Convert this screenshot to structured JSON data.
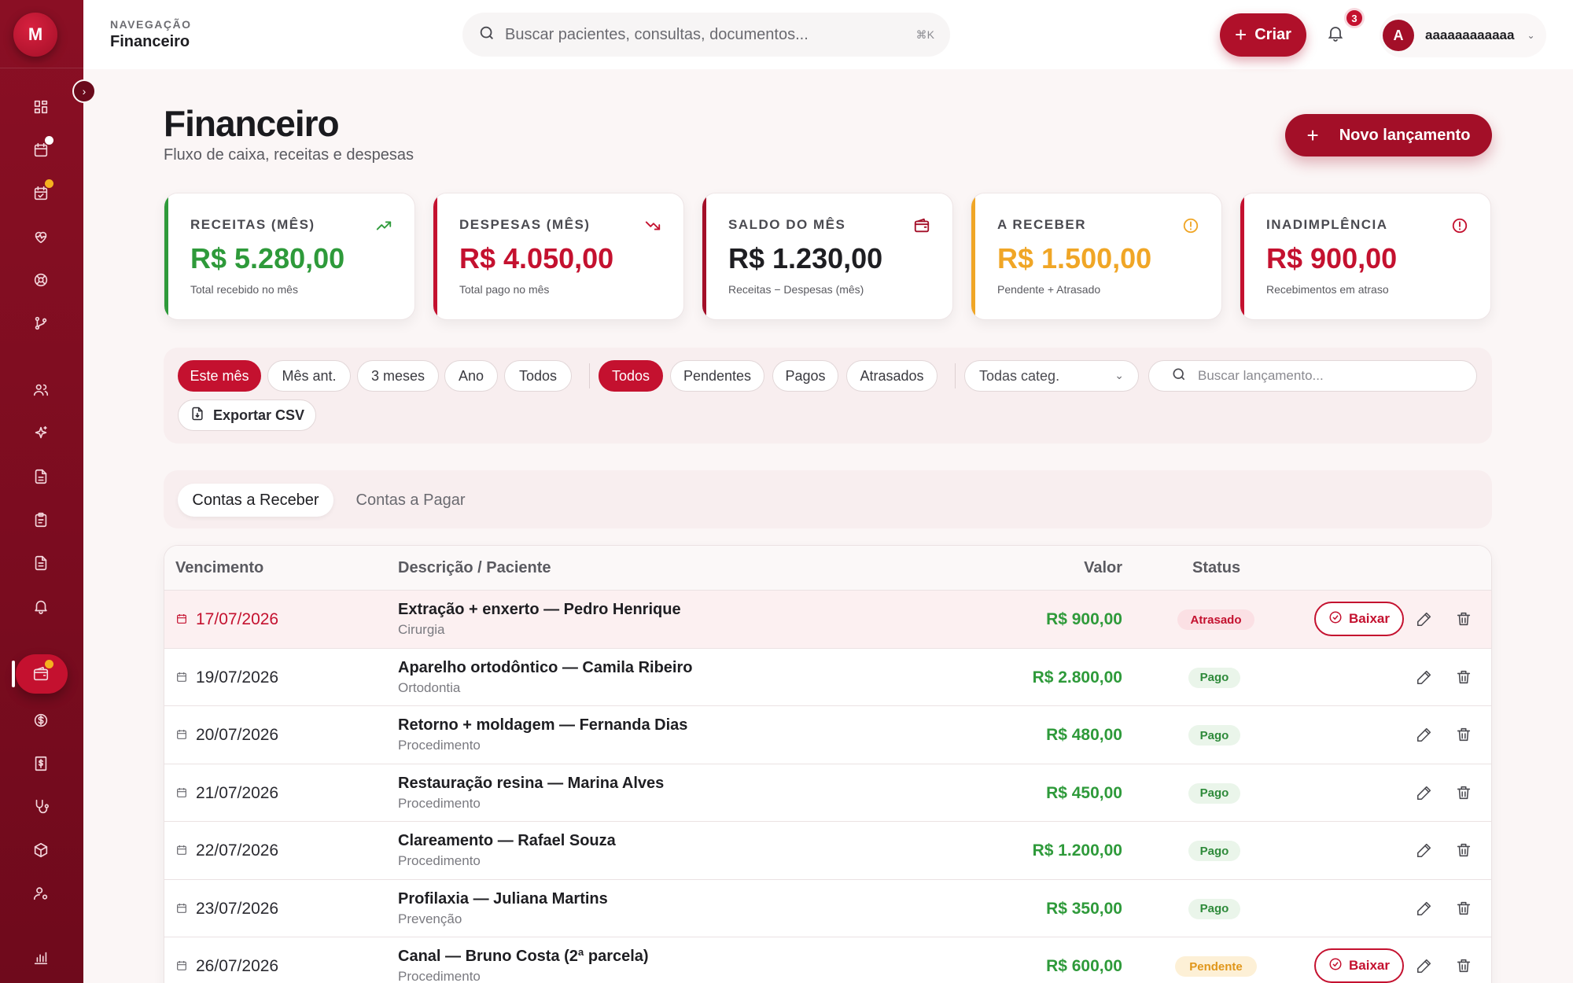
{
  "app": {
    "logo_letter": "M"
  },
  "topbar": {
    "nav_label": "NAVEGAÇÃO",
    "nav_title": "Financeiro",
    "search_placeholder": "Buscar pacientes, consultas, documentos...",
    "search_shortcut": "⌘K",
    "create_label": "Criar",
    "notifications_count": "3",
    "user_initial": "A",
    "user_name": "aaaaaaaaaaaa"
  },
  "header": {
    "title": "Financeiro",
    "subtitle": "Fluxo de caixa, receitas e despesas",
    "new_entry_label": "Novo lançamento"
  },
  "kpis": [
    {
      "label": "RECEITAS (MÊS)",
      "value": "R$ 5.280,00",
      "note": "Total recebido no mês",
      "accent": "#2e9a3a",
      "value_color": "#2e9a3a",
      "icon": "trending-up-icon"
    },
    {
      "label": "DESPESAS (MÊS)",
      "value": "R$ 4.050,00",
      "note": "Total pago no mês",
      "accent": "#c4112f",
      "value_color": "#c4112f",
      "icon": "trending-down-icon"
    },
    {
      "label": "SALDO DO MÊS",
      "value": "R$ 1.230,00",
      "note": "Receitas − Despesas (mês)",
      "accent": "#a30f28",
      "value_color": "#1e1e22",
      "icon": "wallet-icon"
    },
    {
      "label": "A RECEBER",
      "value": "R$ 1.500,00",
      "note": "Pendente + Atrasado",
      "accent": "#f0a626",
      "value_color": "#f0a626",
      "icon": "clock-alert-icon"
    },
    {
      "label": "INADIMPLÊNCIA",
      "value": "R$ 900,00",
      "note": "Recebimentos em atraso",
      "accent": "#c4112f",
      "value_color": "#c4112f",
      "icon": "alert-circle-icon"
    }
  ],
  "filters": {
    "periods": [
      "Este mês",
      "Mês ant.",
      "3 meses",
      "Ano",
      "Todos"
    ],
    "active_period": "Este mês",
    "statuses": [
      "Todos",
      "Pendentes",
      "Pagos",
      "Atrasados"
    ],
    "active_status": "Todos",
    "category_select": "Todas categ.",
    "search_placeholder": "Buscar lançamento...",
    "export_label": "Exportar CSV"
  },
  "tabs": {
    "receivable": "Contas a Receber",
    "payable": "Contas a Pagar",
    "active": "receivable"
  },
  "table": {
    "headers": {
      "due": "Vencimento",
      "description": "Descrição / Paciente",
      "value": "Valor",
      "status": "Status"
    },
    "baixar_label": "Baixar",
    "rows": [
      {
        "date": "17/07/2026",
        "desc": "Extração + enxerto — Pedro Henrique",
        "cat": "Cirurgia",
        "value": "R$ 900,00",
        "status": "Atrasado",
        "status_key": "atrasado",
        "overdue": true,
        "baixar": true
      },
      {
        "date": "19/07/2026",
        "desc": "Aparelho ortodôntico — Camila Ribeiro",
        "cat": "Ortodontia",
        "value": "R$ 2.800,00",
        "status": "Pago",
        "status_key": "pago",
        "overdue": false,
        "baixar": false
      },
      {
        "date": "20/07/2026",
        "desc": "Retorno + moldagem — Fernanda Dias",
        "cat": "Procedimento",
        "value": "R$ 480,00",
        "status": "Pago",
        "status_key": "pago",
        "overdue": false,
        "baixar": false
      },
      {
        "date": "21/07/2026",
        "desc": "Restauração resina — Marina Alves",
        "cat": "Procedimento",
        "value": "R$ 450,00",
        "status": "Pago",
        "status_key": "pago",
        "overdue": false,
        "baixar": false
      },
      {
        "date": "22/07/2026",
        "desc": "Clareamento — Rafael Souza",
        "cat": "Procedimento",
        "value": "R$ 1.200,00",
        "status": "Pago",
        "status_key": "pago",
        "overdue": false,
        "baixar": false
      },
      {
        "date": "23/07/2026",
        "desc": "Profilaxia — Juliana Martins",
        "cat": "Prevenção",
        "value": "R$ 350,00",
        "status": "Pago",
        "status_key": "pago",
        "overdue": false,
        "baixar": false
      },
      {
        "date": "26/07/2026",
        "desc": "Canal — Bruno Costa (2ª parcela)",
        "cat": "Procedimento",
        "value": "R$ 600,00",
        "status": "Pendente",
        "status_key": "pendente",
        "overdue": false,
        "baixar": true
      }
    ]
  },
  "sidebar": {
    "icons": [
      {
        "name": "dashboard-icon",
        "dot": ""
      },
      {
        "name": "calendar-icon",
        "dot": "#ffffff"
      },
      {
        "name": "calendar-check-icon",
        "dot": "#f5b21f"
      },
      {
        "name": "heart-pulse-icon",
        "dot": ""
      },
      {
        "name": "lifebuoy-icon",
        "dot": ""
      },
      {
        "name": "git-branch-icon",
        "dot": ""
      },
      {
        "name": "users-icon",
        "dot": ""
      },
      {
        "name": "sparkles-icon",
        "dot": ""
      },
      {
        "name": "document-icon",
        "dot": ""
      },
      {
        "name": "clipboard-icon",
        "dot": ""
      },
      {
        "name": "file-text-icon",
        "dot": ""
      },
      {
        "name": "bell-icon",
        "dot": ""
      },
      {
        "name": "wallet-icon",
        "dot": "#f5b21f",
        "active": true
      },
      {
        "name": "dollar-circle-icon",
        "dot": ""
      },
      {
        "name": "receipt-icon",
        "dot": ""
      },
      {
        "name": "stethoscope-icon",
        "dot": ""
      },
      {
        "name": "package-icon",
        "dot": ""
      },
      {
        "name": "user-cog-icon",
        "dot": ""
      },
      {
        "name": "bar-chart-icon",
        "dot": ""
      }
    ]
  }
}
